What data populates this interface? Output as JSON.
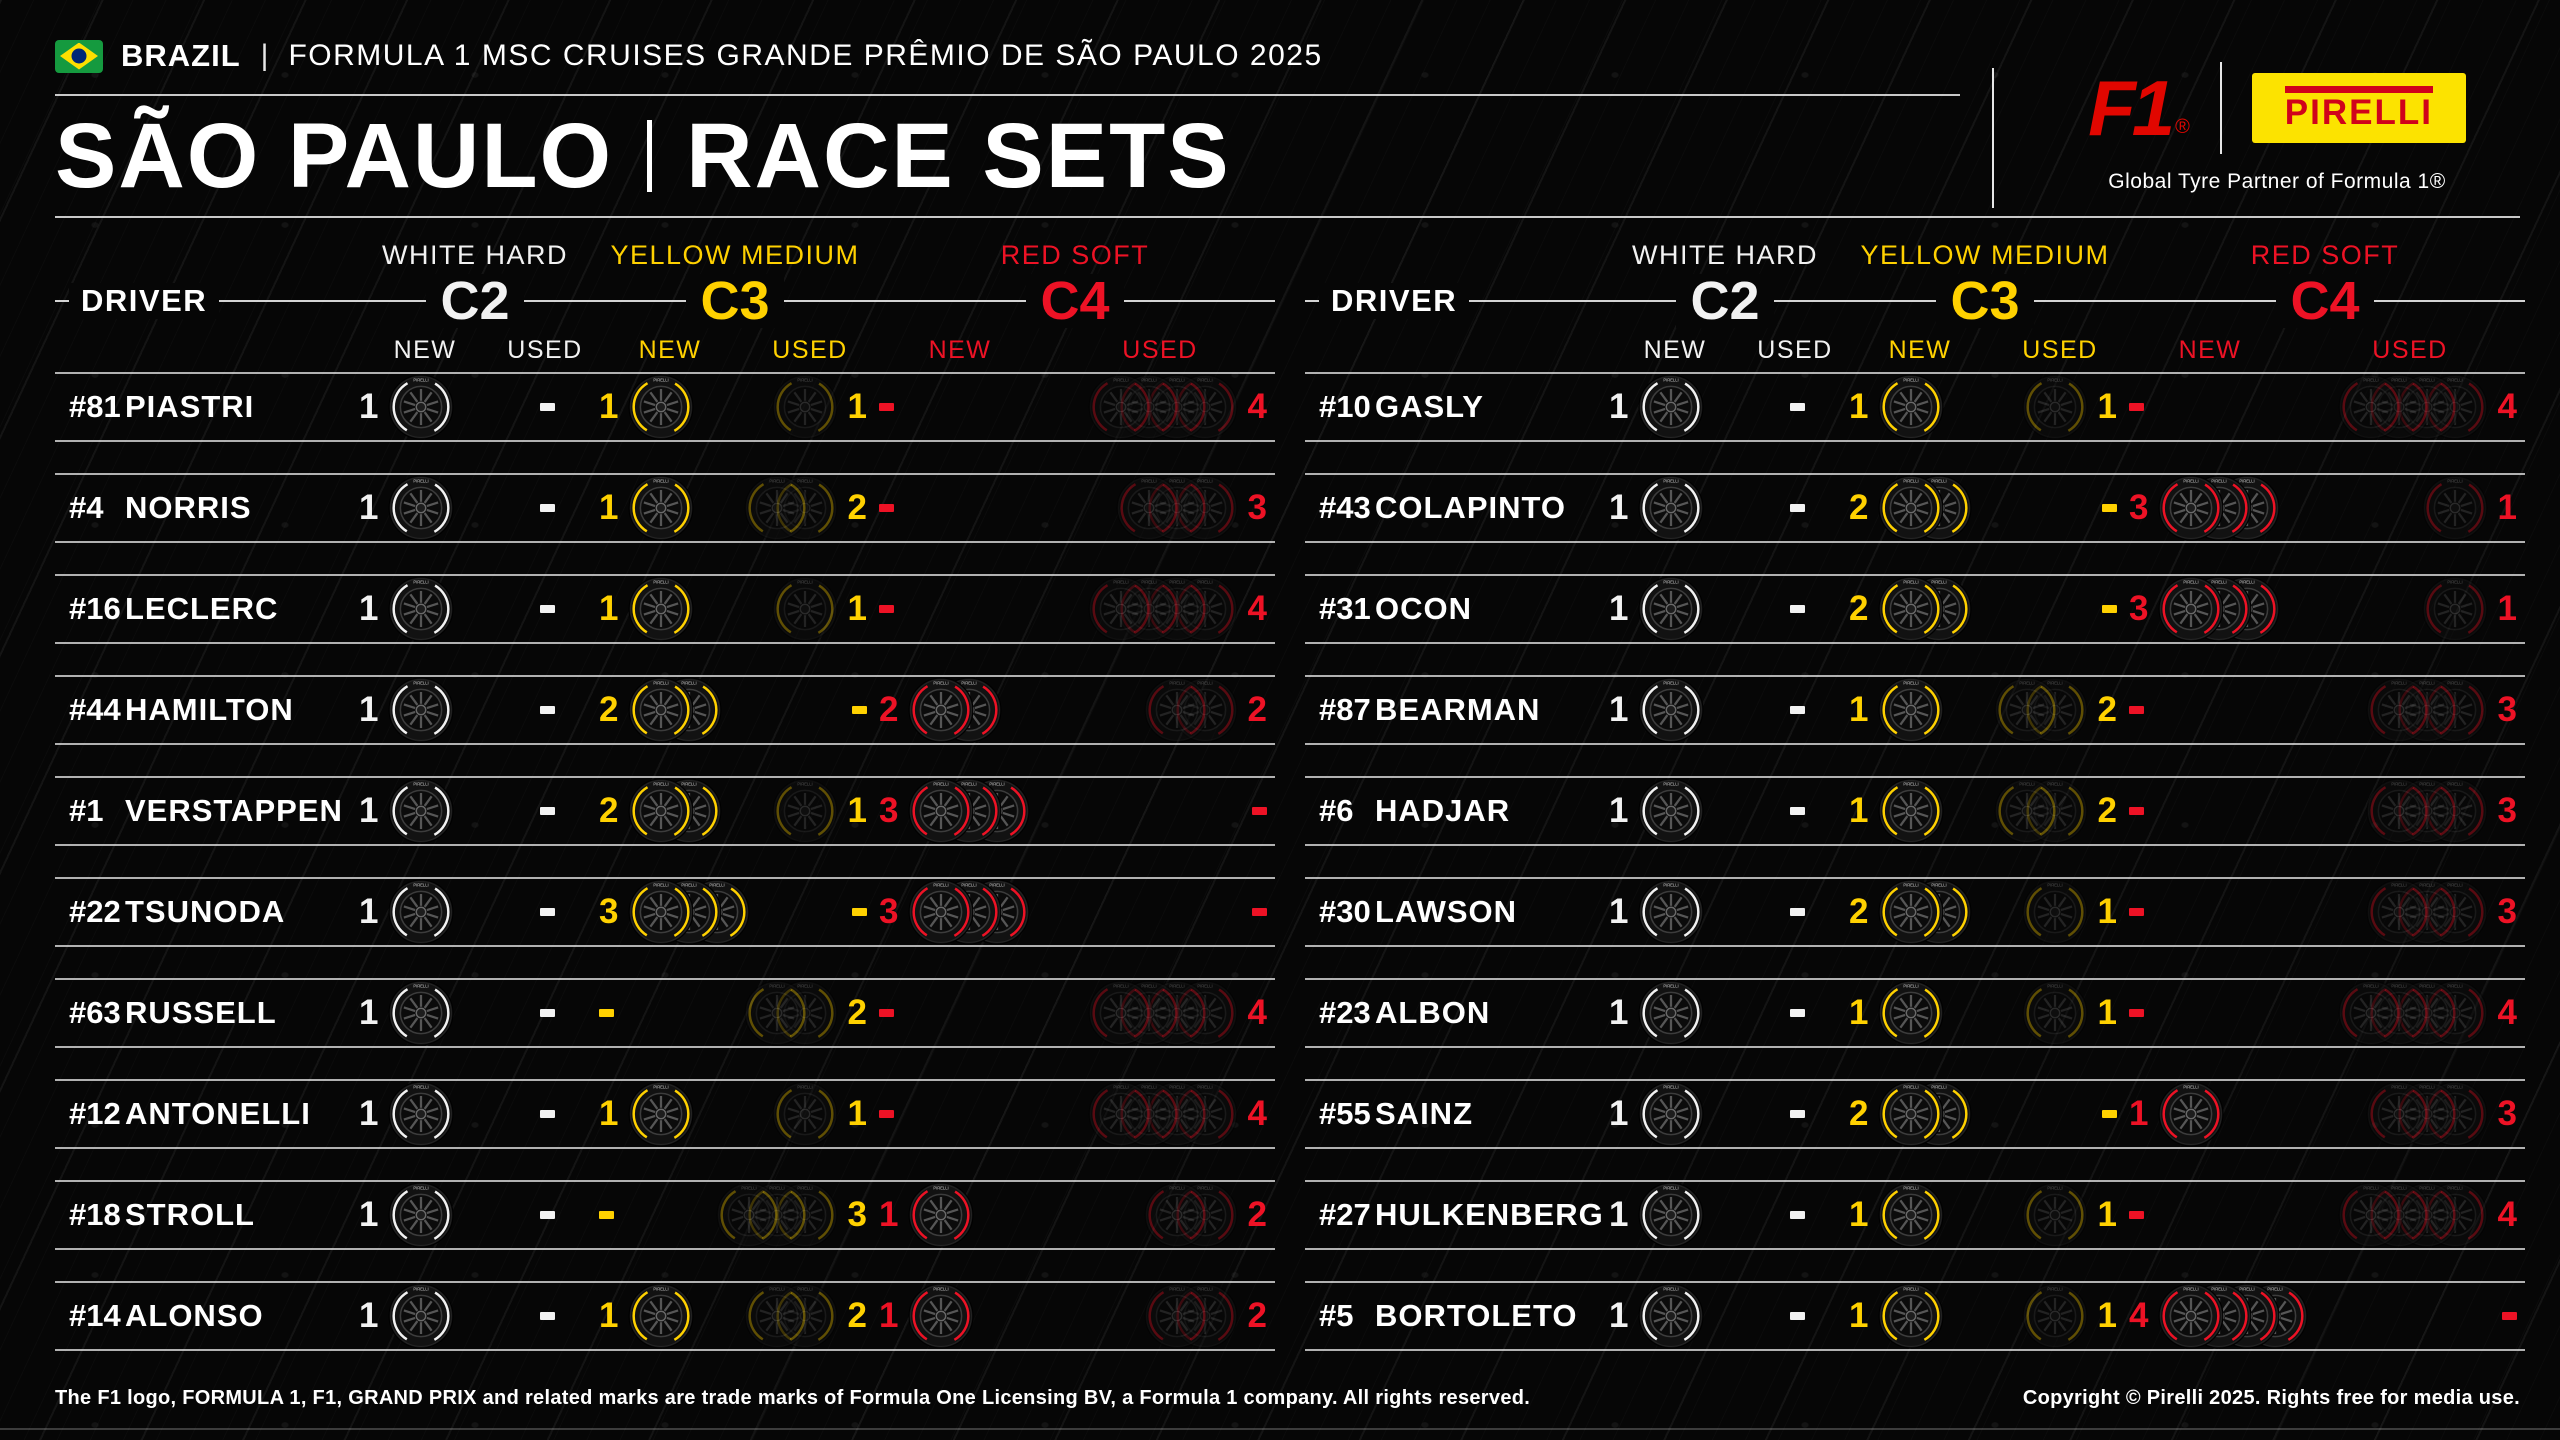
{
  "header": {
    "country": "BRAZIL",
    "separator": "|",
    "event": "FORMULA 1 MSC CRUISES GRANDE PRÊMIO DE SÃO PAULO 2025",
    "title_left": "SÃO PAULO",
    "title_right": "RACE SETS",
    "flag": "brazil-flag",
    "f1_logo_text": "F1",
    "f1_logo_reg": "®",
    "f1_logo_color": "#E10600",
    "pirelli_logo_text": "PIRELLI",
    "pirelli_logo_bg": "#FCE300",
    "pirelli_logo_color": "#D0021B",
    "partner_tagline": "Global Tyre Partner of Formula 1®"
  },
  "columns": {
    "driver_label": "DRIVER",
    "new_label": "NEW",
    "used_label": "USED",
    "dash_symbol": "-",
    "compounds": [
      {
        "id": "C2",
        "name": "WHITE HARD",
        "color": "#F2F2F2"
      },
      {
        "id": "C3",
        "name": "YELLOW MEDIUM",
        "color": "#FFD100"
      },
      {
        "id": "C4",
        "name": "RED SOFT",
        "color": "#ED1225"
      }
    ]
  },
  "tables": {
    "left": [
      {
        "num": "#81",
        "name": "PIASTRI",
        "c2n": 1,
        "c2u": "-",
        "c3n": 1,
        "c3u": 1,
        "c4n": "-",
        "c4u": 4
      },
      {
        "num": "#4",
        "name": "NORRIS",
        "c2n": 1,
        "c2u": "-",
        "c3n": 1,
        "c3u": 2,
        "c4n": "-",
        "c4u": 3
      },
      {
        "num": "#16",
        "name": "LECLERC",
        "c2n": 1,
        "c2u": "-",
        "c3n": 1,
        "c3u": 1,
        "c4n": "-",
        "c4u": 4
      },
      {
        "num": "#44",
        "name": "HAMILTON",
        "c2n": 1,
        "c2u": "-",
        "c3n": 2,
        "c3u": "-",
        "c4n": 2,
        "c4u": 2
      },
      {
        "num": "#1",
        "name": "VERSTAPPEN",
        "c2n": 1,
        "c2u": "-",
        "c3n": 2,
        "c3u": 1,
        "c4n": 3,
        "c4u": "-"
      },
      {
        "num": "#22",
        "name": "TSUNODA",
        "c2n": 1,
        "c2u": "-",
        "c3n": 3,
        "c3u": "-",
        "c4n": 3,
        "c4u": "-"
      },
      {
        "num": "#63",
        "name": "RUSSELL",
        "c2n": 1,
        "c2u": "-",
        "c3n": "-",
        "c3u": 2,
        "c4n": "-",
        "c4u": 4
      },
      {
        "num": "#12",
        "name": "ANTONELLI",
        "c2n": 1,
        "c2u": "-",
        "c3n": 1,
        "c3u": 1,
        "c4n": "-",
        "c4u": 4
      },
      {
        "num": "#18",
        "name": "STROLL",
        "c2n": 1,
        "c2u": "-",
        "c3n": "-",
        "c3u": 3,
        "c4n": 1,
        "c4u": 2
      },
      {
        "num": "#14",
        "name": "ALONSO",
        "c2n": 1,
        "c2u": "-",
        "c3n": 1,
        "c3u": 2,
        "c4n": 1,
        "c4u": 2
      }
    ],
    "right": [
      {
        "num": "#10",
        "name": "GASLY",
        "c2n": 1,
        "c2u": "-",
        "c3n": 1,
        "c3u": 1,
        "c4n": "-",
        "c4u": 4
      },
      {
        "num": "#43",
        "name": "COLAPINTO",
        "c2n": 1,
        "c2u": "-",
        "c3n": 2,
        "c3u": "-",
        "c4n": 3,
        "c4u": 1
      },
      {
        "num": "#31",
        "name": "OCON",
        "c2n": 1,
        "c2u": "-",
        "c3n": 2,
        "c3u": "-",
        "c4n": 3,
        "c4u": 1
      },
      {
        "num": "#87",
        "name": "BEARMAN",
        "c2n": 1,
        "c2u": "-",
        "c3n": 1,
        "c3u": 2,
        "c4n": "-",
        "c4u": 3
      },
      {
        "num": "#6",
        "name": "HADJAR",
        "c2n": 1,
        "c2u": "-",
        "c3n": 1,
        "c3u": 2,
        "c4n": "-",
        "c4u": 3
      },
      {
        "num": "#30",
        "name": "LAWSON",
        "c2n": 1,
        "c2u": "-",
        "c3n": 2,
        "c3u": 1,
        "c4n": "-",
        "c4u": 3
      },
      {
        "num": "#23",
        "name": "ALBON",
        "c2n": 1,
        "c2u": "-",
        "c3n": 1,
        "c3u": 1,
        "c4n": "-",
        "c4u": 4
      },
      {
        "num": "#55",
        "name": "SAINZ",
        "c2n": 1,
        "c2u": "-",
        "c3n": 2,
        "c3u": "-",
        "c4n": 1,
        "c4u": 3
      },
      {
        "num": "#27",
        "name": "HULKENBERG",
        "c2n": 1,
        "c2u": "-",
        "c3n": 1,
        "c3u": 1,
        "c4n": "-",
        "c4u": 4
      },
      {
        "num": "#5",
        "name": "BORTOLETO",
        "c2n": 1,
        "c2u": "-",
        "c3n": 1,
        "c3u": 1,
        "c4n": 4,
        "c4u": "-"
      }
    ]
  },
  "footer": {
    "left": "The F1 logo, FORMULA 1, F1, GRAND PRIX and related marks are trade marks of Formula One Licensing BV, a Formula 1 company. All rights reserved.",
    "right": "Copyright © Pirelli 2025. Rights free for media use."
  }
}
